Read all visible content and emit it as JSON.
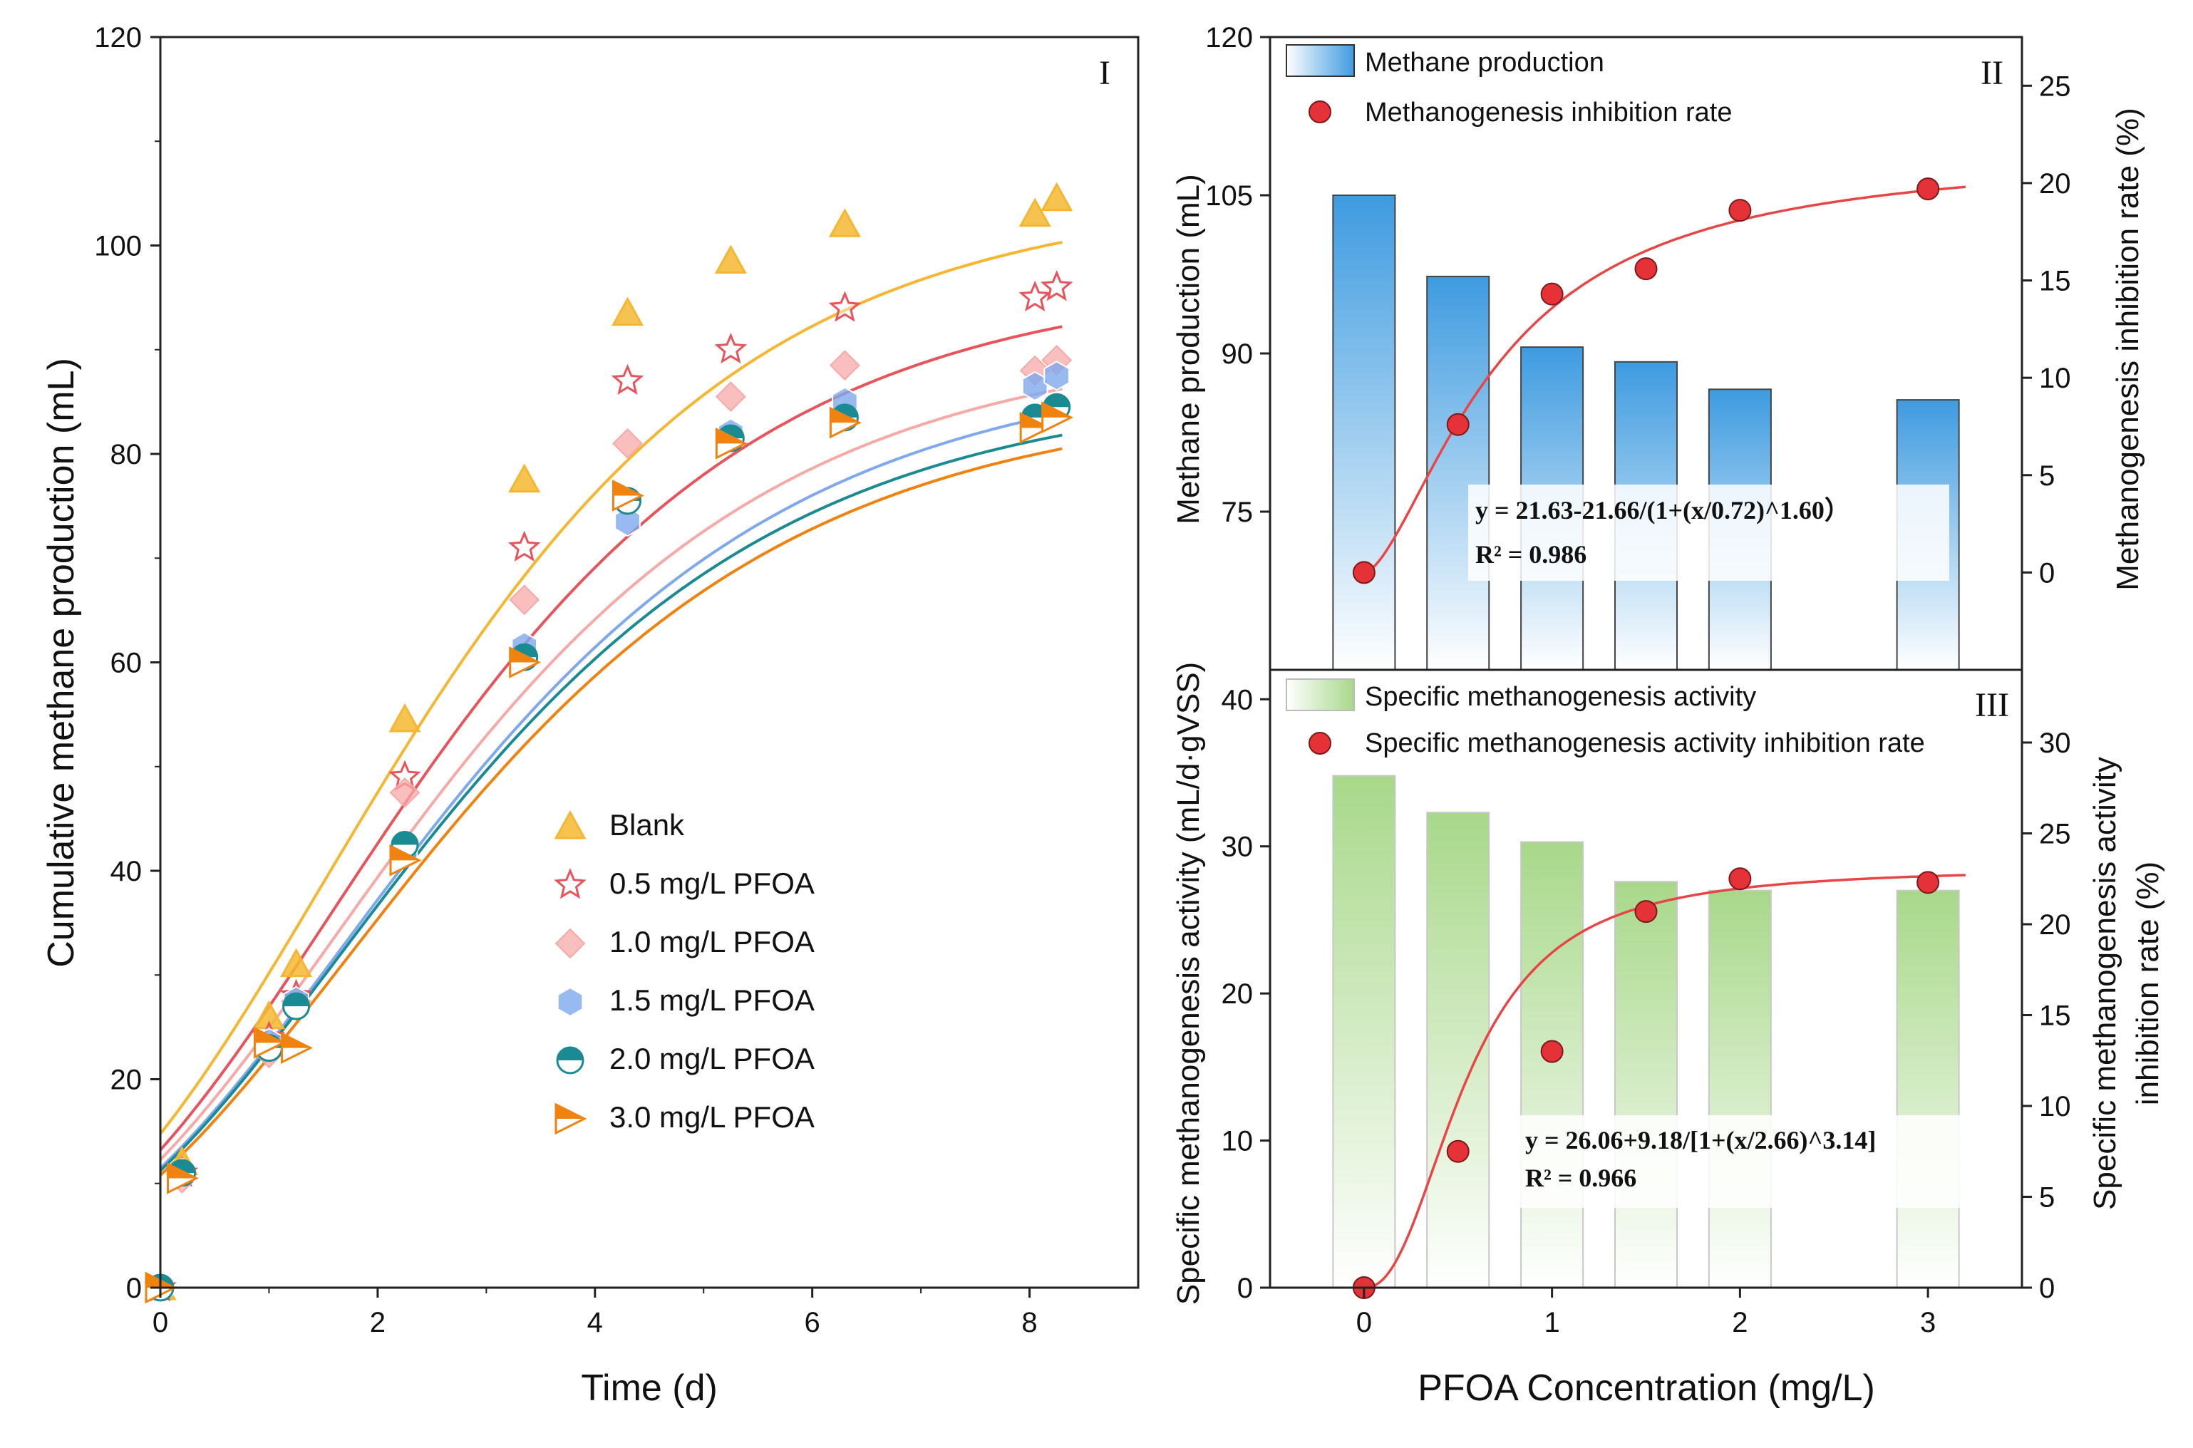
{
  "figure": {
    "colors": {
      "blank": "#F5B731",
      "p05": "#E8545C",
      "p10": "#F7A9A8",
      "p15": "#7FA8EE",
      "p20": "#1A8A93",
      "p30": "#F0820F",
      "bar_blue": "#3E9BE0",
      "bar_green": "#A8D88A",
      "dot_red": "#E53238",
      "fit_red": "#E84646"
    }
  },
  "chart_data": [
    {
      "id": "I",
      "type": "scatter",
      "panel_label": "I",
      "xlabel": "Time (d)",
      "ylabel": "Cumulative methane production (mL)",
      "xlim": [
        0,
        9
      ],
      "ylim": [
        0,
        120
      ],
      "xticks": [
        "0",
        "2",
        "4",
        "6",
        "8"
      ],
      "yticks": [
        "0",
        "20",
        "40",
        "60",
        "80",
        "100",
        "120"
      ],
      "x": [
        0,
        0.2,
        1.0,
        1.25,
        2.25,
        3.35,
        4.3,
        5.25,
        6.3,
        8.05,
        8.25
      ],
      "series": [
        {
          "name": "Blank",
          "color_key": "blank",
          "marker": "triangle-up",
          "values": [
            0,
            12,
            26,
            31,
            54.5,
            77.5,
            93.5,
            98.5,
            102,
            103,
            104.5
          ],
          "fit": {
            "ymax": 105,
            "mu": 17.5,
            "lambda": -0.72
          }
        },
        {
          "name": "0.5 mg/L PFOA",
          "color_key": "p05",
          "marker": "star",
          "values": [
            0,
            11,
            24,
            28,
            49,
            71,
            87,
            90,
            94,
            95,
            96
          ],
          "fit": {
            "ymax": 97,
            "mu": 15.8,
            "lambda": -0.7
          }
        },
        {
          "name": "1.0 mg/L PFOA",
          "color_key": "p10",
          "marker": "diamond",
          "values": [
            0,
            10.5,
            22.5,
            27.5,
            47.5,
            66,
            81,
            85.5,
            88.5,
            88,
            89
          ],
          "fit": {
            "ymax": 91,
            "mu": 14.6,
            "lambda": -0.7
          }
        },
        {
          "name": "1.5 mg/L PFOA",
          "color_key": "p15",
          "marker": "hexagon",
          "values": [
            0,
            11,
            23.5,
            27.5,
            42,
            61.5,
            73.5,
            82,
            85,
            86.5,
            87.5
          ],
          "fit": {
            "ymax": 89,
            "mu": 14.0,
            "lambda": -0.66
          }
        },
        {
          "name": "2.0 mg/L PFOA",
          "color_key": "p20",
          "marker": "circle-half",
          "values": [
            0,
            11,
            23,
            27,
            42.5,
            60.5,
            75.5,
            81.5,
            83.5,
            83.5,
            84.5
          ],
          "fit": {
            "ymax": 86.5,
            "mu": 13.8,
            "lambda": -0.66
          }
        },
        {
          "name": "3.0 mg/L PFOA",
          "color_key": "p30",
          "marker": "triangle-right",
          "values": [
            0,
            10.5,
            23.5,
            23,
            41,
            60,
            76,
            81,
            83,
            82.5,
            83.5
          ],
          "fit": {
            "ymax": 85.5,
            "mu": 13.4,
            "lambda": -0.64
          }
        }
      ]
    },
    {
      "id": "II",
      "type": "bar",
      "panel_label": "II",
      "categories": [
        0,
        0.5,
        1,
        1.5,
        2,
        3
      ],
      "bar_name": "Methane production",
      "values": [
        105,
        97.3,
        90.6,
        89.2,
        86.6,
        85.6
      ],
      "left_ylabel": "Methane production (mL)",
      "left_ylim": [
        60,
        120
      ],
      "left_yticks": [
        "75",
        "90",
        "105",
        "120"
      ],
      "dot_name": "Methanogenesis inhibition rate",
      "rates": [
        0,
        7.6,
        14.3,
        15.6,
        18.6,
        19.7
      ],
      "right_ylabel": "Methanogenesis inhibition rate (%)",
      "right_ylim": [
        -5,
        27.5
      ],
      "right_yticks": [
        "0",
        "5",
        "10",
        "15",
        "20",
        "25"
      ],
      "fit": {
        "a": 21.63,
        "b": 21.66,
        "x0": 0.72,
        "p": 1.6,
        "xrange": [
          0,
          3.2
        ]
      },
      "equation": "y = 21.63-21.66/(1+(x/0.72)^1.60）",
      "r2": "R² = 0.986"
    },
    {
      "id": "III",
      "type": "bar",
      "panel_label": "III",
      "categories": [
        0,
        0.5,
        1,
        1.5,
        2,
        3
      ],
      "bar_name": "Specific methanogenesis activity",
      "values": [
        34.8,
        32.3,
        30.3,
        27.6,
        27,
        27
      ],
      "left_ylabel": "Specific methanogenesis activity (mL/d·gVSS)",
      "left_ylim": [
        0,
        42
      ],
      "left_yticks": [
        "0",
        "10",
        "20",
        "30",
        "40"
      ],
      "dot_name": "Specific methanogenesis activity inhibition rate",
      "rates": [
        0,
        7.5,
        13,
        20.7,
        22.5,
        22.3
      ],
      "right_ylabel_line1": "Specific methanogenesis activity",
      "right_ylabel_line2": "inhibition rate (%)",
      "right_ylim": [
        0,
        34
      ],
      "right_yticks": [
        "0",
        "5",
        "10",
        "15",
        "20",
        "25",
        "30"
      ],
      "fit": {
        "a": 26.06,
        "b": 9.18,
        "x0": 2.66,
        "p": 3.14,
        "xrange": [
          0,
          3.2
        ]
      },
      "equation": "y = 26.06+9.18/[1+(x/2.66)^3.14]",
      "r2": "R² = 0.966",
      "xlabel": "PFOA Concentration (mg/L)",
      "xlim": [
        -0.5,
        3.5
      ],
      "xticks": [
        "0",
        "1",
        "2",
        "3"
      ]
    }
  ]
}
